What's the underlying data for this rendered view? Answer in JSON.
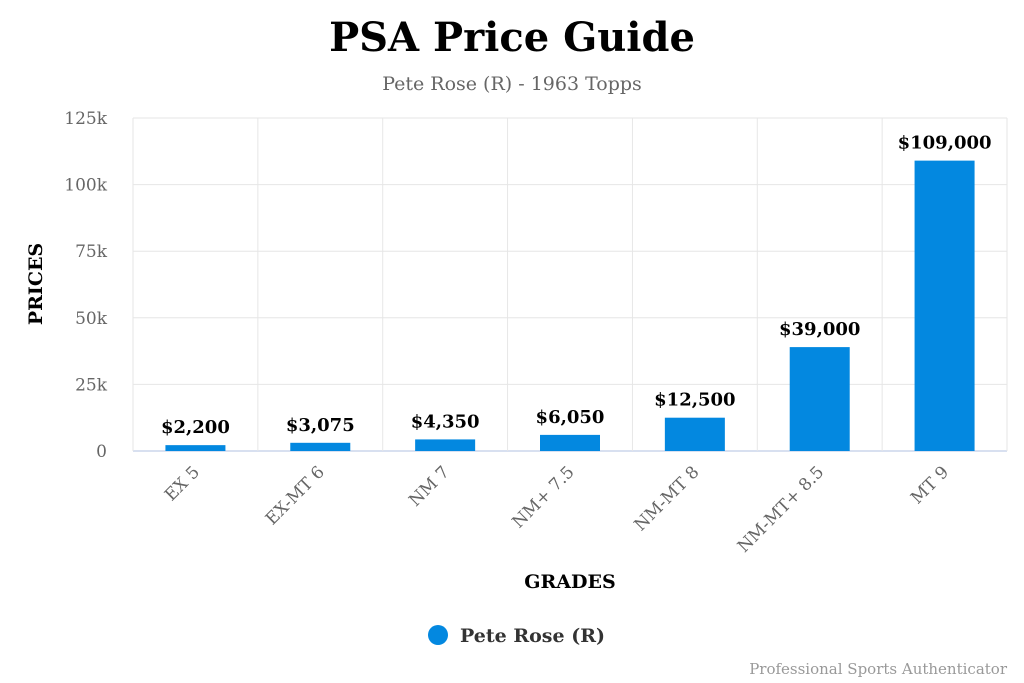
{
  "chart_data": {
    "type": "bar",
    "title": "PSA Price Guide",
    "subtitle": "Pete Rose (R) - 1963 Topps",
    "xlabel": "GRADES",
    "ylabel": "PRICES",
    "categories": [
      "EX 5",
      "EX-MT 6",
      "NM 7",
      "NM+ 7.5",
      "NM-MT 8",
      "NM-MT+ 8.5",
      "MT 9"
    ],
    "series": [
      {
        "name": "Pete Rose (R)",
        "values": [
          2200,
          3075,
          4350,
          6050,
          12500,
          39000,
          109000
        ],
        "labels": [
          "$2,200",
          "$3,075",
          "$4,350",
          "$6,050",
          "$12,500",
          "$39,000",
          "$109,000"
        ],
        "color": "#0388e0"
      }
    ],
    "ylim": [
      0,
      125000
    ],
    "yticks": [
      0,
      25000,
      50000,
      75000,
      100000,
      125000
    ],
    "ytick_labels": [
      "0",
      "25k",
      "50k",
      "75k",
      "100k",
      "125k"
    ],
    "grid": true,
    "legend": "bottom-center"
  },
  "credit": "Professional Sports Authenticator",
  "colors": {
    "bar": "#0388e0",
    "grid": "#e6e6e6",
    "axis": "#ccd6eb"
  }
}
